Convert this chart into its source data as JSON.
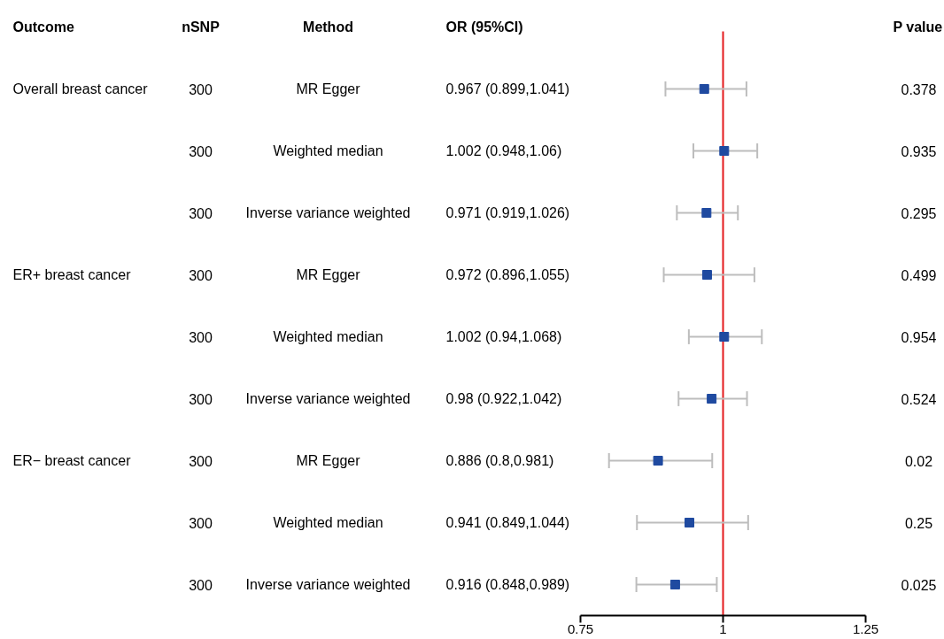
{
  "chart_data": {
    "type": "scatter",
    "orientation": "horizontal",
    "marker": "square",
    "grid": false,
    "categories": [
      null,
      null,
      null,
      null,
      null,
      null,
      null,
      null,
      null
    ],
    "values": [
      0.967,
      1.002,
      0.971,
      0.972,
      1.002,
      0.98,
      0.886,
      0.941,
      0.916
    ],
    "errors": [
      [
        0.899,
        1.041
      ],
      [
        0.948,
        1.06
      ],
      [
        0.919,
        1.026
      ],
      [
        0.896,
        1.055
      ],
      [
        0.94,
        1.068
      ],
      [
        0.922,
        1.042
      ],
      [
        0.8,
        0.981
      ],
      [
        0.849,
        1.044
      ],
      [
        0.848,
        0.989
      ]
    ],
    "color": "#1f4aa0",
    "xlim": [
      0.75,
      1.25
    ],
    "xticks": [
      0.75,
      1,
      1.25
    ],
    "ref_lines": [
      {
        "axis": "x",
        "value": 1,
        "color": "#e41a1c"
      }
    ],
    "annotations": [
      "Outcome",
      "nSNP",
      "Method",
      "OR (95%CI)",
      "P value",
      "Overall breast cancer",
      "ER+ breast cancer",
      "ER− breast cancer",
      "300",
      "MR Egger",
      "0.967 (0.899,1.041)",
      "0.378",
      "300",
      "Weighted median",
      "1.002 (0.948,1.06)",
      "0.935",
      "300",
      "Inverse variance weighted",
      "0.971 (0.919,1.026)",
      "0.295",
      "300",
      "MR Egger",
      "0.972 (0.896,1.055)",
      "0.499",
      "300",
      "Weighted median",
      "1.002 (0.94,1.068)",
      "0.954",
      "300",
      "Inverse variance weighted",
      "0.98 (0.922,1.042)",
      "0.524",
      "300",
      "MR Egger",
      "0.886 (0.8,0.981)",
      "0.02",
      "300",
      "Weighted median",
      "0.941 (0.849,1.044)",
      "0.25",
      "300",
      "Inverse variance weighted",
      "0.916 (0.848,0.989)",
      "0.025"
    ]
  }
}
